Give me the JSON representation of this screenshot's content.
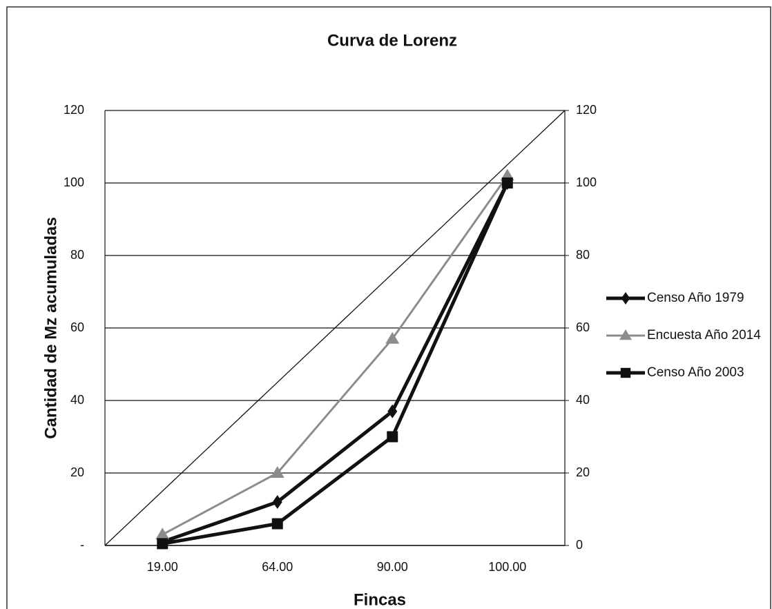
{
  "chart_data": {
    "type": "line",
    "title": "Curva de Lorenz",
    "x_label": "Fincas",
    "y_label": "Cantidad de Mz acumuladas",
    "categories": [
      "19.00",
      "64.00",
      "90.00",
      "100.00"
    ],
    "series": [
      {
        "name": "Censo Año 1979",
        "color": "#111111",
        "marker": "diamond",
        "values": [
          1,
          12,
          37,
          100
        ]
      },
      {
        "name": "Encuesta Año 2014",
        "color": "#8c8c8c",
        "marker": "triangle",
        "values": [
          3,
          20,
          57,
          102
        ]
      },
      {
        "name": "Censo Año 2003",
        "color": "#111111",
        "marker": "square",
        "values": [
          0.5,
          6,
          30,
          100
        ]
      }
    ],
    "ylim": [
      0,
      120
    ],
    "yticks": [
      {
        "value": 0,
        "label": "-"
      },
      20,
      40,
      60,
      80,
      100,
      120
    ],
    "y2lim": [
      0,
      120
    ],
    "y2ticks": [
      0,
      20,
      40,
      60,
      80,
      100,
      120
    ],
    "grid": true,
    "legend": "right"
  }
}
